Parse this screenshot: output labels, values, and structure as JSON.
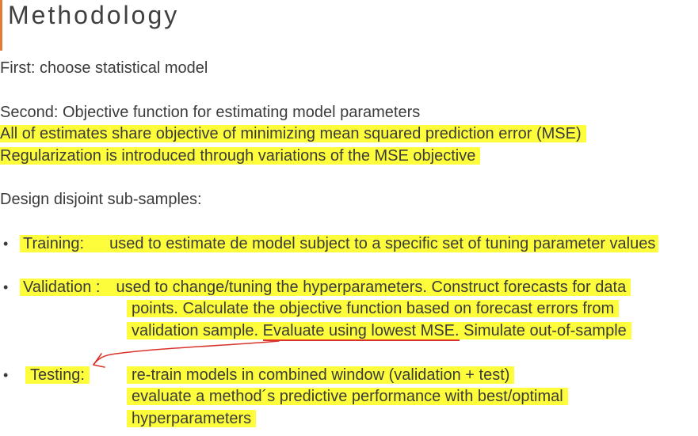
{
  "title": "Methodology",
  "first": "First:  choose statistical model",
  "second": "Second: Objective function for estimating model parameters",
  "second_note_1": "All of estimates share objective of minimizing mean squared prediction error (MSE)",
  "second_note_2": "Regularization is introduced through variations of the MSE objective",
  "design": "Design disjoint sub-samples:",
  "bullet_glyph": "•",
  "training": {
    "label": "Training:",
    "text": "used to estimate de model subject to a specific set of tuning parameter values"
  },
  "validation": {
    "label": "Validation :",
    "line1": "used to change/tuning the hyperparameters. Construct forecasts for data",
    "line2": "points. Calculate the objective function based on forecast errors from",
    "line3_pre": "validation sample.  ",
    "line3_emph": "Evaluate using lowest MSE.",
    "line3_post": "  Simulate out-of-sample"
  },
  "testing": {
    "label": "Testing:",
    "line1": "re-train models in combined window (validation + test)",
    "line2": "evaluate a method´s predictive performance with best/optimal",
    "line3": "hyperparameters"
  },
  "colors": {
    "highlight": "#fdfd3c",
    "accent": "#e07b39",
    "annotation": "#d9342b"
  }
}
